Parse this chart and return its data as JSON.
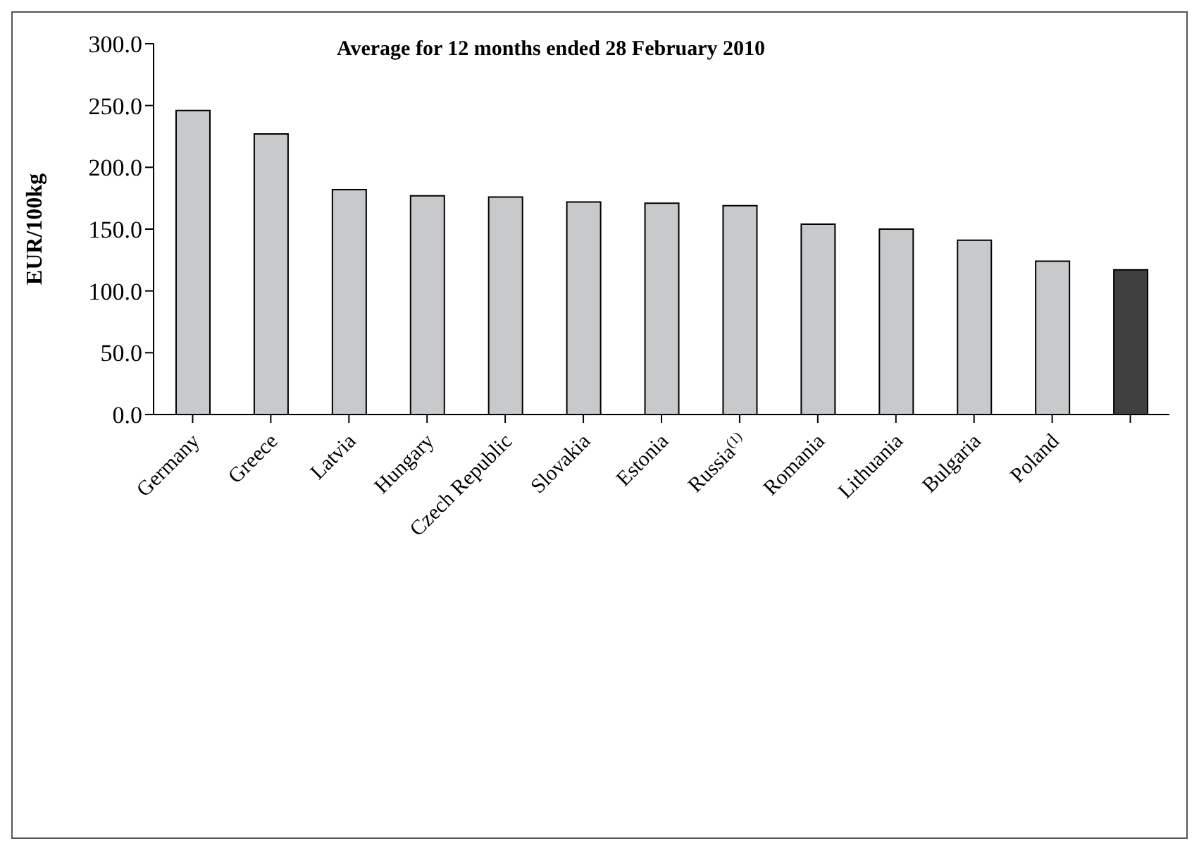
{
  "chart_data": {
    "type": "bar",
    "title": "Average for 12 months ended 28 February 2010",
    "ylabel": "EUR/100kg",
    "categories": [
      "Germany",
      "Greece",
      "Latvia",
      "Hungary",
      "Czech Republic",
      "Slovakia",
      "Estonia",
      "Russia$^{(1)}$",
      "Romania",
      "Lithuania",
      "Bulgaria",
      "Poland",
      null
    ],
    "values": [
      246,
      227,
      182,
      177,
      176,
      172,
      171,
      169,
      154,
      150,
      141,
      124,
      117
    ],
    "colors": [
      "#c8c9cb",
      "#c8c9cb",
      "#c8c9cb",
      "#c8c9cb",
      "#c8c9cb",
      "#c8c9cb",
      "#c8c9cb",
      "#c8c9cb",
      "#c8c9cb",
      "#c8c9cb",
      "#c8c9cb",
      "#c8c9cb",
      "#404040"
    ],
    "ylim": [
      0,
      300
    ],
    "yticks": [
      {
        "value": 0,
        "label": "0.0"
      },
      {
        "value": 50,
        "label": "50.0"
      },
      {
        "value": 100,
        "label": "100.0"
      },
      {
        "value": 150,
        "label": "150.0"
      },
      {
        "value": 200,
        "label": "200.0"
      },
      {
        "value": 250,
        "label": "250.0"
      },
      {
        "value": 300,
        "label": "300.0"
      }
    ],
    "grid": false,
    "legend": false
  }
}
